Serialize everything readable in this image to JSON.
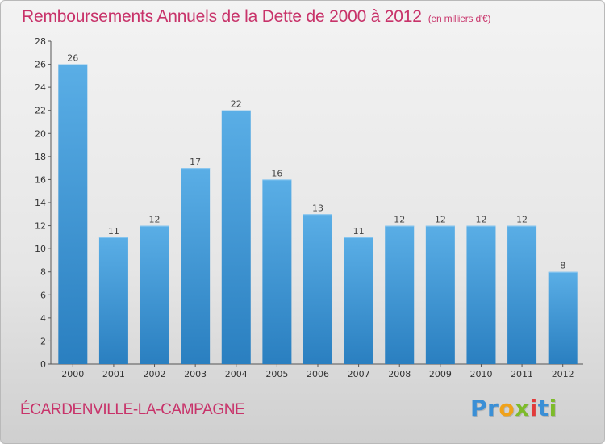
{
  "header": {
    "title": "Remboursements Annuels de la Dette de 2000 à 2012",
    "subtitle": "(en milliers d'€)"
  },
  "footer": {
    "commune": "ÉCARDENVILLE-LA-CAMPAGNE",
    "logo_letters": [
      "P",
      "r",
      "o",
      "x",
      "i",
      "t",
      "i"
    ]
  },
  "colors": {
    "title": "#c8336a",
    "bar_top": "#5aaee6",
    "bar_bottom": "#2a7fc0",
    "logo": [
      "#3a8fd6",
      "#3a8fd6",
      "#f0a21a",
      "#7dbb2a",
      "#e23b3b",
      "#3a8fd6",
      "#7dbb2a"
    ]
  },
  "chart_data": {
    "type": "bar",
    "categories": [
      "2000",
      "2001",
      "2002",
      "2003",
      "2004",
      "2005",
      "2006",
      "2007",
      "2008",
      "2009",
      "2010",
      "2011",
      "2012"
    ],
    "values": [
      26,
      11,
      12,
      17,
      22,
      16,
      13,
      11,
      12,
      12,
      12,
      12,
      8
    ],
    "ylim": [
      0,
      28
    ],
    "yticks": [
      0,
      2,
      4,
      6,
      8,
      10,
      12,
      14,
      16,
      18,
      20,
      22,
      24,
      26,
      28
    ],
    "grid": false,
    "data_labels": true
  }
}
